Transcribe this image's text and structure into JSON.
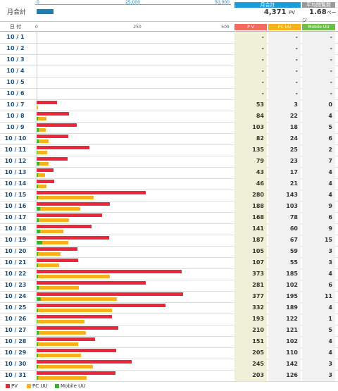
{
  "summary": {
    "label": "月合計",
    "scale_ticks": [
      "0",
      "25,000",
      "50,000"
    ],
    "monthly_total_head": "月合計",
    "monthly_total_value": "4,371",
    "monthly_total_unit": "PV",
    "avg_head": "平均閲覧数",
    "avg_value": "1.68",
    "avg_unit": "ページ",
    "total_pv": 4371,
    "scale_max": 50000
  },
  "header": {
    "date_label": "日 付",
    "tick_labels": [
      "0",
      "250",
      "500"
    ],
    "pv_head": "P V",
    "pc_head": "PC UU",
    "mobile_head": "Mobile UU"
  },
  "colors": {
    "pv": "#e8293a",
    "pc": "#f5b21b",
    "mobile": "#3bb132",
    "header_blue": "#1a9ed9"
  },
  "legend": [
    "PV",
    "PC UU",
    "Mobile UU"
  ],
  "chart_data": {
    "type": "bar",
    "orientation": "horizontal",
    "xlim": [
      0,
      500
    ],
    "x_ticks": [
      0,
      250,
      500
    ],
    "categories": [
      "10 / 1",
      "10 / 2",
      "10 / 3",
      "10 / 4",
      "10 / 5",
      "10 / 6",
      "10 / 7",
      "10 / 8",
      "10 / 9",
      "10 / 10",
      "10 / 11",
      "10 / 12",
      "10 / 13",
      "10 / 14",
      "10 / 15",
      "10 / 16",
      "10 / 17",
      "10 / 18",
      "10 / 19",
      "10 / 20",
      "10 / 21",
      "10 / 22",
      "10 / 23",
      "10 / 24",
      "10 / 25",
      "10 / 26",
      "10 / 27",
      "10 / 28",
      "10 / 29",
      "10 / 30",
      "10 / 31"
    ],
    "series": [
      {
        "name": "PV",
        "values": [
          null,
          null,
          null,
          null,
          null,
          null,
          53,
          84,
          103,
          82,
          135,
          79,
          43,
          46,
          280,
          188,
          168,
          141,
          187,
          105,
          107,
          373,
          281,
          377,
          332,
          193,
          210,
          151,
          205,
          245,
          203
        ]
      },
      {
        "name": "PC UU",
        "values": [
          null,
          null,
          null,
          null,
          null,
          null,
          3,
          22,
          18,
          24,
          25,
          23,
          17,
          21,
          143,
          103,
          78,
          60,
          67,
          59,
          55,
          185,
          102,
          195,
          189,
          122,
          121,
          102,
          110,
          142,
          126
        ]
      },
      {
        "name": "Mobile UU",
        "values": [
          null,
          null,
          null,
          null,
          null,
          null,
          0,
          4,
          5,
          6,
          2,
          7,
          4,
          4,
          4,
          9,
          6,
          9,
          15,
          3,
          3,
          4,
          6,
          11,
          4,
          1,
          5,
          4,
          4,
          3,
          3
        ]
      }
    ],
    "legend_position": "bottom-left"
  }
}
